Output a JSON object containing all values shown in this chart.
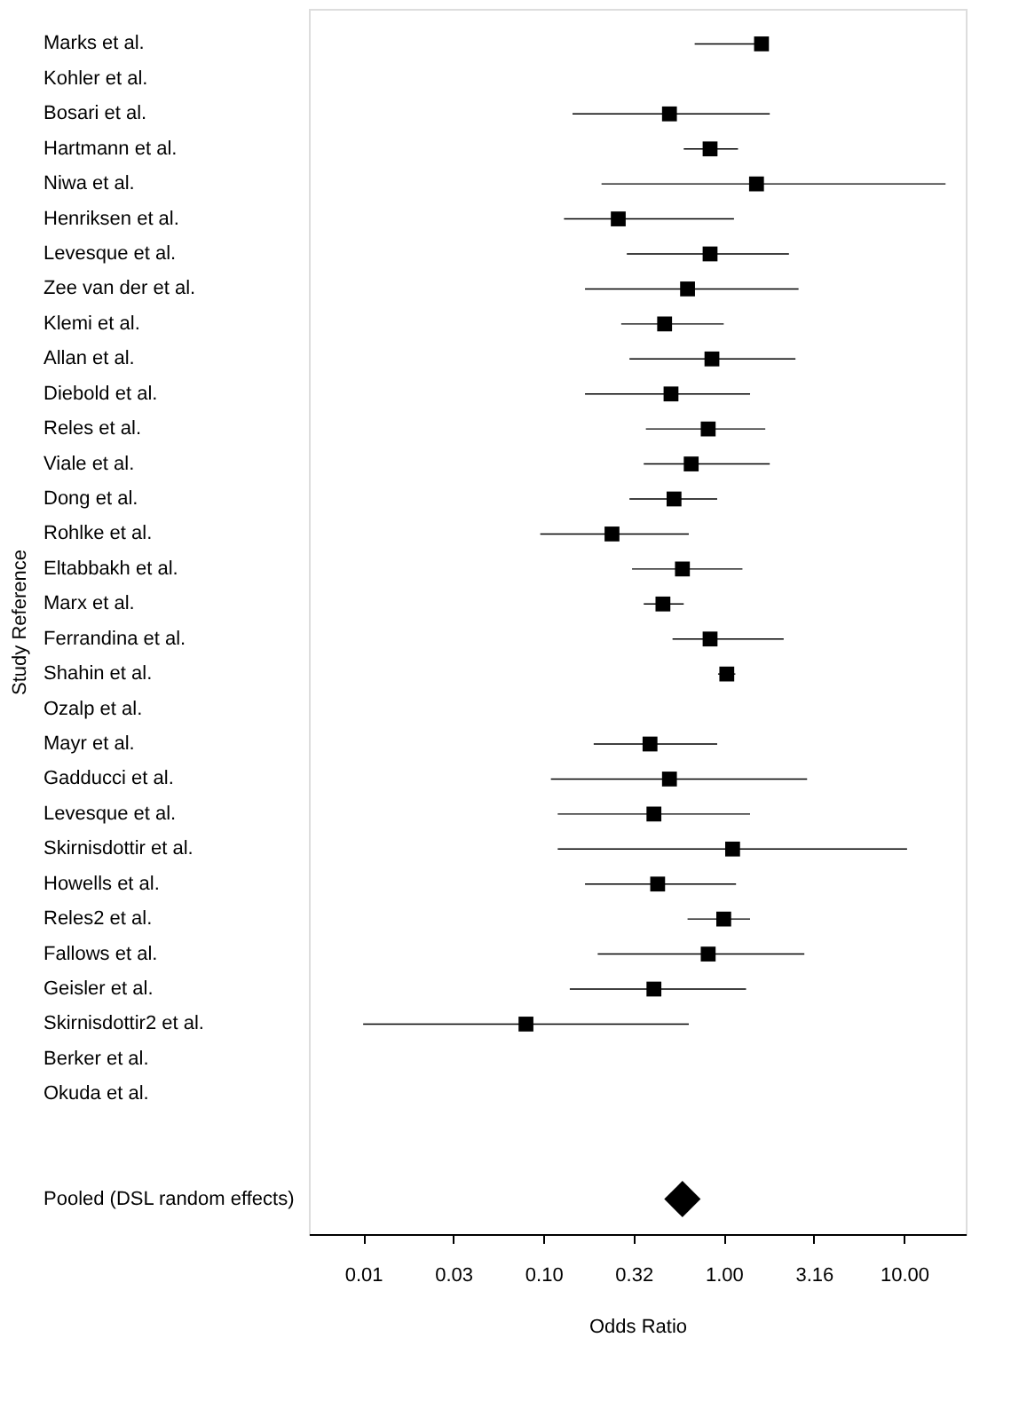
{
  "chart_data": {
    "type": "scatter",
    "orientation": "horizontal",
    "xlabel": "Odds Ratio",
    "ylabel": "Study Reference",
    "log": "x",
    "grid": false,
    "categories": [
      "Marks et al.",
      "Kohler et al.",
      "Bosari et al.",
      "Hartmann et al.",
      "Niwa et al.",
      "Henriksen et al.",
      "Levesque et al.",
      "Zee van der et al.",
      "Klemi et al.",
      "Allan et al.",
      "Diebold et al.",
      "Reles et al.",
      "Viale et al.",
      "Dong et al.",
      "Rohlke et al.",
      "Eltabbakh et al.",
      "Marx et al.",
      "Ferrandina et al.",
      "Shahin et al.",
      "Ozalp et al.",
      "Mayr et al.",
      "Gadducci et al.",
      "Levesque et al.",
      "Skirnisdottir et al.",
      "Howells et al.",
      "Reles2 et al.",
      "Fallows et al.",
      "Geisler et al.",
      "Skirnisdottir2 et al.",
      "Berker et al.",
      "Okuda et al.",
      null,
      null,
      "Pooled (DSL random effects)"
    ],
    "xlim": [
      0.005,
      22
    ],
    "xticks": [
      0.01,
      {
        "value": 0.0316,
        "label": "0.03"
      },
      {
        "value": 0.1,
        "label": "0.10"
      },
      {
        "value": 0.316,
        "label": "0.32"
      },
      {
        "value": 1,
        "label": "1.00"
      },
      {
        "value": 3.16,
        "label": "3.16"
      },
      {
        "value": 10,
        "label": "10.00"
      }
    ],
    "series": [
      {
        "color": "#000000",
        "marker": "square",
        "values": [
          1.62,
          null,
          0.5,
          0.84,
          1.52,
          0.26,
          0.84,
          0.63,
          0.47,
          0.86,
          0.51,
          0.82,
          0.66,
          0.53,
          0.24,
          0.59,
          0.46,
          0.84,
          1.04,
          null,
          0.39,
          0.5,
          0.41,
          1.12,
          0.43,
          1.0,
          0.82,
          0.41,
          0.08,
          null,
          null,
          null,
          null,
          null
        ],
        "errors": [
          [
            0.69,
            1.77
          ],
          null,
          [
            0.145,
            1.8
          ],
          [
            0.6,
            1.2
          ],
          [
            0.21,
            17
          ],
          [
            0.13,
            1.14
          ],
          [
            0.29,
            2.3
          ],
          [
            0.17,
            2.6
          ],
          [
            0.27,
            1.0
          ],
          [
            0.3,
            2.5
          ],
          [
            0.17,
            1.4
          ],
          [
            0.37,
            1.7
          ],
          [
            0.36,
            1.8
          ],
          [
            0.3,
            0.92
          ],
          [
            0.096,
            0.64
          ],
          [
            0.31,
            1.27
          ],
          [
            0.36,
            0.6
          ],
          [
            0.52,
            2.15
          ],
          [
            0.93,
            1.16
          ],
          null,
          [
            0.19,
            0.92
          ],
          [
            0.11,
            2.9
          ],
          [
            0.12,
            1.4
          ],
          [
            0.12,
            10.4
          ],
          [
            0.17,
            1.17
          ],
          [
            0.63,
            1.4
          ],
          [
            0.2,
            2.8
          ],
          [
            0.14,
            1.33
          ],
          [
            0.01,
            0.64
          ],
          null,
          null,
          null,
          null,
          null
        ]
      },
      {
        "color": "#000000",
        "marker": "diamond",
        "values": [
          null,
          null,
          null,
          null,
          null,
          null,
          null,
          null,
          null,
          null,
          null,
          null,
          null,
          null,
          null,
          null,
          null,
          null,
          null,
          null,
          null,
          null,
          null,
          null,
          null,
          null,
          null,
          null,
          null,
          null,
          null,
          null,
          null,
          0.59
        ],
        "errors": [
          null,
          null,
          null,
          null,
          null,
          null,
          null,
          null,
          null,
          null,
          null,
          null,
          null,
          null,
          null,
          null,
          null,
          null,
          null,
          null,
          null,
          null,
          null,
          null,
          null,
          null,
          null,
          null,
          null,
          null,
          null,
          null,
          null,
          [
            0.5,
            0.72
          ]
        ]
      }
    ]
  }
}
